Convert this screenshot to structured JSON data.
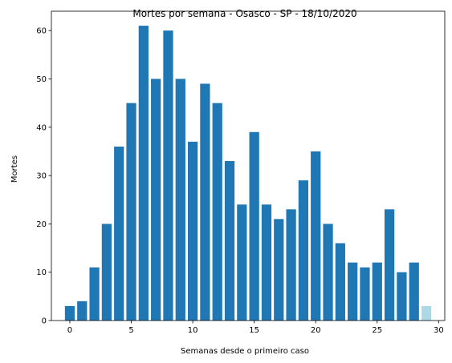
{
  "chart_data": {
    "type": "bar",
    "title": "Mortes por semana - Osasco - SP - 18/10/2020",
    "xlabel": "Semanas desde o primeiro caso",
    "ylabel": "Mortes",
    "xlim": [
      -1.5,
      30.5
    ],
    "ylim": [
      0,
      64
    ],
    "x_ticks": [
      0,
      5,
      10,
      15,
      20,
      25,
      30
    ],
    "y_ticks": [
      0,
      10,
      20,
      30,
      40,
      50,
      60
    ],
    "grid": false,
    "bar_color": "#1f77b4",
    "highlight_color": "#add8e6",
    "series": [
      {
        "x": [
          0,
          1,
          2,
          3,
          4,
          5,
          6,
          7,
          8,
          9,
          10,
          11,
          12,
          13,
          14,
          15,
          16,
          17,
          18,
          19,
          20,
          21,
          22,
          23,
          24,
          25,
          26,
          27,
          28,
          29
        ],
        "values": [
          3,
          4,
          11,
          20,
          36,
          45,
          61,
          50,
          60,
          50,
          37,
          49,
          45,
          33,
          24,
          39,
          24,
          21,
          23,
          29,
          35,
          20,
          16,
          12,
          11,
          12,
          23,
          10,
          12,
          3
        ],
        "highlight_index": 29
      }
    ]
  }
}
